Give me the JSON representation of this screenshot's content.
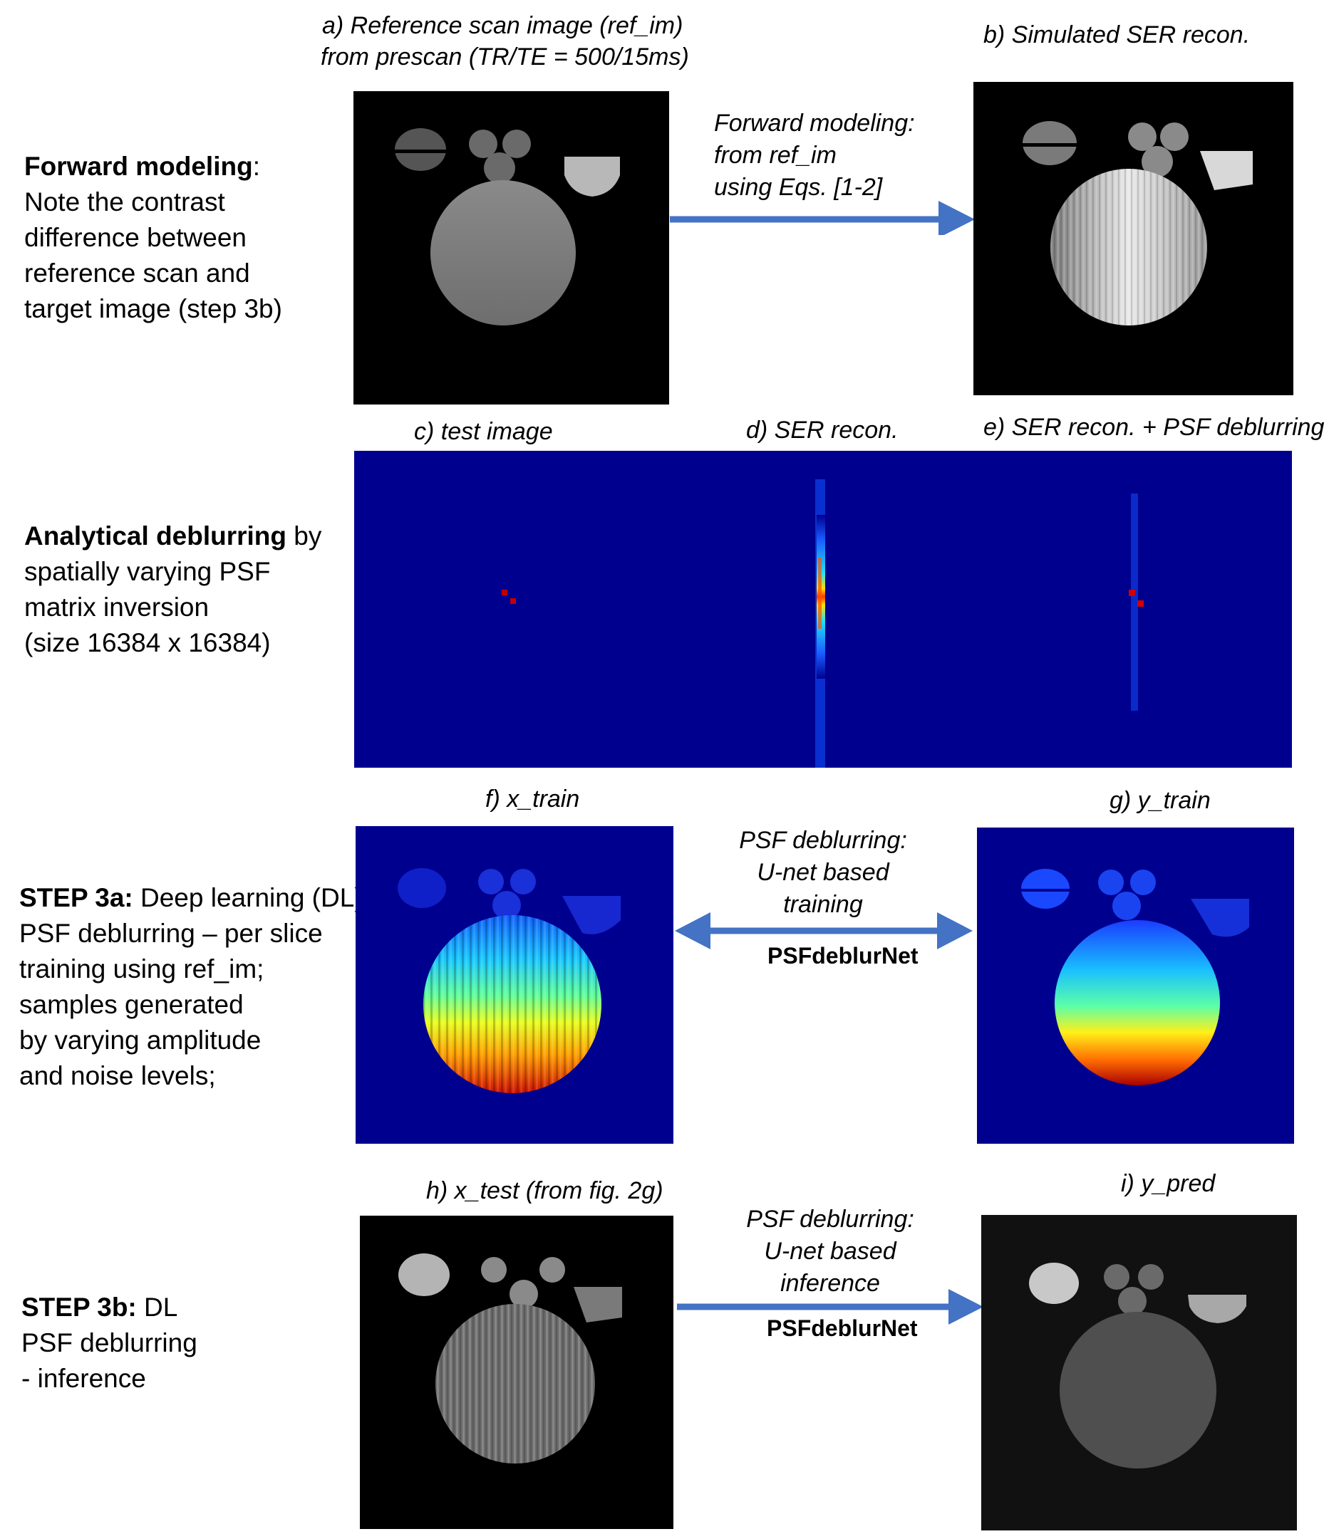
{
  "row1": {
    "side_bold": "Forward modeling",
    "side_rest": ":",
    "side_lines": [
      "Note the contrast",
      "difference between",
      "reference scan and",
      "target image (step 3b)"
    ],
    "cap_a_line1": "a)   Reference scan image (ref_im)",
    "cap_a_line2": "from prescan (TR/TE = 500/15ms)",
    "cap_b": "b)  Simulated SER  recon.",
    "arrow_lines": [
      "Forward modeling:",
      "from ref_im",
      "using Eqs. [1-2]"
    ]
  },
  "row2": {
    "side_bold": "Analytical deblurring",
    "side_rest": " by",
    "side_lines": [
      "spatially varying PSF",
      "matrix inversion",
      "(size 16384 x 16384)"
    ],
    "cap_c": "c) test image",
    "cap_d": "d) SER recon.",
    "cap_e": "e) SER recon. + PSF deblurring"
  },
  "row3": {
    "side_bold": "STEP 3a:",
    "side_rest": " Deep learning (DL)",
    "side_lines": [
      "PSF deblurring – per slice",
      " training using ref_im;",
      "samples generated",
      "by varying amplitude",
      "and noise levels;"
    ],
    "cap_f": "f) x_train",
    "cap_g": "g) y_train",
    "arrow_lines": [
      "PSF deblurring:",
      "U-net based",
      "training"
    ],
    "net_label": "PSFdeblurNet"
  },
  "row4": {
    "side_bold": "STEP 3b:",
    "side_rest": " DL",
    "side_lines": [
      "PSF deblurring",
      "- inference"
    ],
    "cap_h": "h) x_test (from fig. 2g)",
    "cap_i": "i) y_pred",
    "arrow_lines": [
      "PSF deblurring:",
      "U-net based",
      "inference"
    ],
    "net_label": "PSFdeblurNet"
  },
  "colors": {
    "arrow": "#4472C4",
    "jet_background": "#00008F",
    "black": "#000000"
  }
}
